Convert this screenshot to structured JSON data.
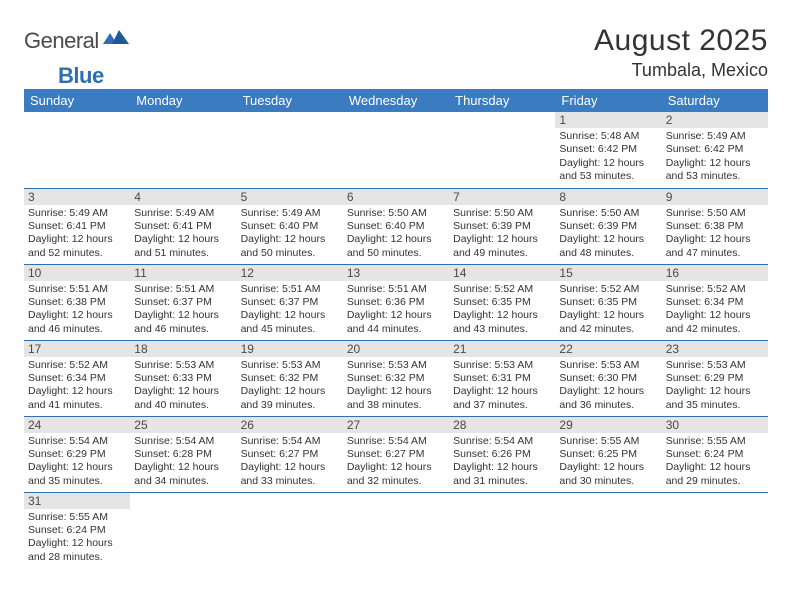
{
  "logo": {
    "text1": "General",
    "text2": "Blue"
  },
  "title": {
    "month": "August 2025",
    "location": "Tumbala, Mexico"
  },
  "colors": {
    "header_bg": "#3b7bbf",
    "header_text": "#ffffff",
    "daynum_bg": "#e5e5e5",
    "row_border": "#2f6fb0",
    "body_text": "#333333"
  },
  "weekdays": [
    "Sunday",
    "Monday",
    "Tuesday",
    "Wednesday",
    "Thursday",
    "Friday",
    "Saturday"
  ],
  "weeks": [
    [
      null,
      null,
      null,
      null,
      null,
      {
        "n": "1",
        "sunrise": "5:48 AM",
        "sunset": "6:42 PM",
        "daylight": "12 hours and 53 minutes."
      },
      {
        "n": "2",
        "sunrise": "5:49 AM",
        "sunset": "6:42 PM",
        "daylight": "12 hours and 53 minutes."
      }
    ],
    [
      {
        "n": "3",
        "sunrise": "5:49 AM",
        "sunset": "6:41 PM",
        "daylight": "12 hours and 52 minutes."
      },
      {
        "n": "4",
        "sunrise": "5:49 AM",
        "sunset": "6:41 PM",
        "daylight": "12 hours and 51 minutes."
      },
      {
        "n": "5",
        "sunrise": "5:49 AM",
        "sunset": "6:40 PM",
        "daylight": "12 hours and 50 minutes."
      },
      {
        "n": "6",
        "sunrise": "5:50 AM",
        "sunset": "6:40 PM",
        "daylight": "12 hours and 50 minutes."
      },
      {
        "n": "7",
        "sunrise": "5:50 AM",
        "sunset": "6:39 PM",
        "daylight": "12 hours and 49 minutes."
      },
      {
        "n": "8",
        "sunrise": "5:50 AM",
        "sunset": "6:39 PM",
        "daylight": "12 hours and 48 minutes."
      },
      {
        "n": "9",
        "sunrise": "5:50 AM",
        "sunset": "6:38 PM",
        "daylight": "12 hours and 47 minutes."
      }
    ],
    [
      {
        "n": "10",
        "sunrise": "5:51 AM",
        "sunset": "6:38 PM",
        "daylight": "12 hours and 46 minutes."
      },
      {
        "n": "11",
        "sunrise": "5:51 AM",
        "sunset": "6:37 PM",
        "daylight": "12 hours and 46 minutes."
      },
      {
        "n": "12",
        "sunrise": "5:51 AM",
        "sunset": "6:37 PM",
        "daylight": "12 hours and 45 minutes."
      },
      {
        "n": "13",
        "sunrise": "5:51 AM",
        "sunset": "6:36 PM",
        "daylight": "12 hours and 44 minutes."
      },
      {
        "n": "14",
        "sunrise": "5:52 AM",
        "sunset": "6:35 PM",
        "daylight": "12 hours and 43 minutes."
      },
      {
        "n": "15",
        "sunrise": "5:52 AM",
        "sunset": "6:35 PM",
        "daylight": "12 hours and 42 minutes."
      },
      {
        "n": "16",
        "sunrise": "5:52 AM",
        "sunset": "6:34 PM",
        "daylight": "12 hours and 42 minutes."
      }
    ],
    [
      {
        "n": "17",
        "sunrise": "5:52 AM",
        "sunset": "6:34 PM",
        "daylight": "12 hours and 41 minutes."
      },
      {
        "n": "18",
        "sunrise": "5:53 AM",
        "sunset": "6:33 PM",
        "daylight": "12 hours and 40 minutes."
      },
      {
        "n": "19",
        "sunrise": "5:53 AM",
        "sunset": "6:32 PM",
        "daylight": "12 hours and 39 minutes."
      },
      {
        "n": "20",
        "sunrise": "5:53 AM",
        "sunset": "6:32 PM",
        "daylight": "12 hours and 38 minutes."
      },
      {
        "n": "21",
        "sunrise": "5:53 AM",
        "sunset": "6:31 PM",
        "daylight": "12 hours and 37 minutes."
      },
      {
        "n": "22",
        "sunrise": "5:53 AM",
        "sunset": "6:30 PM",
        "daylight": "12 hours and 36 minutes."
      },
      {
        "n": "23",
        "sunrise": "5:53 AM",
        "sunset": "6:29 PM",
        "daylight": "12 hours and 35 minutes."
      }
    ],
    [
      {
        "n": "24",
        "sunrise": "5:54 AM",
        "sunset": "6:29 PM",
        "daylight": "12 hours and 35 minutes."
      },
      {
        "n": "25",
        "sunrise": "5:54 AM",
        "sunset": "6:28 PM",
        "daylight": "12 hours and 34 minutes."
      },
      {
        "n": "26",
        "sunrise": "5:54 AM",
        "sunset": "6:27 PM",
        "daylight": "12 hours and 33 minutes."
      },
      {
        "n": "27",
        "sunrise": "5:54 AM",
        "sunset": "6:27 PM",
        "daylight": "12 hours and 32 minutes."
      },
      {
        "n": "28",
        "sunrise": "5:54 AM",
        "sunset": "6:26 PM",
        "daylight": "12 hours and 31 minutes."
      },
      {
        "n": "29",
        "sunrise": "5:55 AM",
        "sunset": "6:25 PM",
        "daylight": "12 hours and 30 minutes."
      },
      {
        "n": "30",
        "sunrise": "5:55 AM",
        "sunset": "6:24 PM",
        "daylight": "12 hours and 29 minutes."
      }
    ],
    [
      {
        "n": "31",
        "sunrise": "5:55 AM",
        "sunset": "6:24 PM",
        "daylight": "12 hours and 28 minutes."
      },
      null,
      null,
      null,
      null,
      null,
      null
    ]
  ],
  "labels": {
    "sunrise": "Sunrise: ",
    "sunset": "Sunset: ",
    "daylight": "Daylight: "
  }
}
